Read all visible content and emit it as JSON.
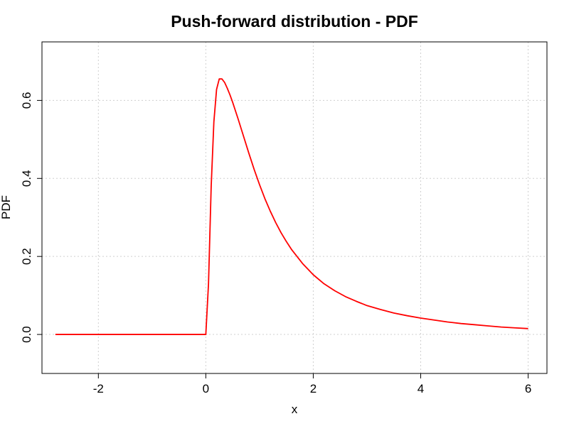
{
  "chart_data": {
    "type": "line",
    "title": "Push-forward distribution - PDF",
    "xlabel": "x",
    "ylabel": "PDF",
    "xlim": [
      -3.05,
      6.35
    ],
    "ylim": [
      -0.1,
      0.75
    ],
    "x_ticks": [
      -2,
      0,
      2,
      4,
      6
    ],
    "x_tick_labels": [
      "-2",
      "0",
      "2",
      "4",
      "6"
    ],
    "y_ticks": [
      0.0,
      0.2,
      0.4,
      0.6
    ],
    "y_tick_labels": [
      "0.0",
      "0.2",
      "0.4",
      "0.6"
    ],
    "grid": true,
    "series": [
      {
        "color": "#ff0000",
        "x": [
          -2.8,
          -2.0,
          -1.0,
          0.0,
          0.05,
          0.1,
          0.15,
          0.2,
          0.25,
          0.3,
          0.35,
          0.4,
          0.45,
          0.5,
          0.6,
          0.7,
          0.8,
          0.9,
          1.0,
          1.1,
          1.2,
          1.3,
          1.4,
          1.5,
          1.6,
          1.8,
          2.0,
          2.2,
          2.4,
          2.6,
          2.8,
          3.0,
          3.25,
          3.5,
          3.75,
          4.0,
          4.25,
          4.5,
          4.75,
          5.0,
          5.25,
          5.5,
          5.75,
          6.0
        ],
        "y": [
          0.0,
          0.0,
          0.0,
          0.0,
          0.13,
          0.38,
          0.545,
          0.628,
          0.655,
          0.655,
          0.646,
          0.631,
          0.614,
          0.595,
          0.553,
          0.509,
          0.465,
          0.423,
          0.384,
          0.348,
          0.316,
          0.287,
          0.261,
          0.238,
          0.217,
          0.182,
          0.153,
          0.13,
          0.112,
          0.097,
          0.085,
          0.074,
          0.064,
          0.055,
          0.048,
          0.042,
          0.037,
          0.032,
          0.028,
          0.025,
          0.022,
          0.019,
          0.017,
          0.015
        ]
      }
    ]
  }
}
